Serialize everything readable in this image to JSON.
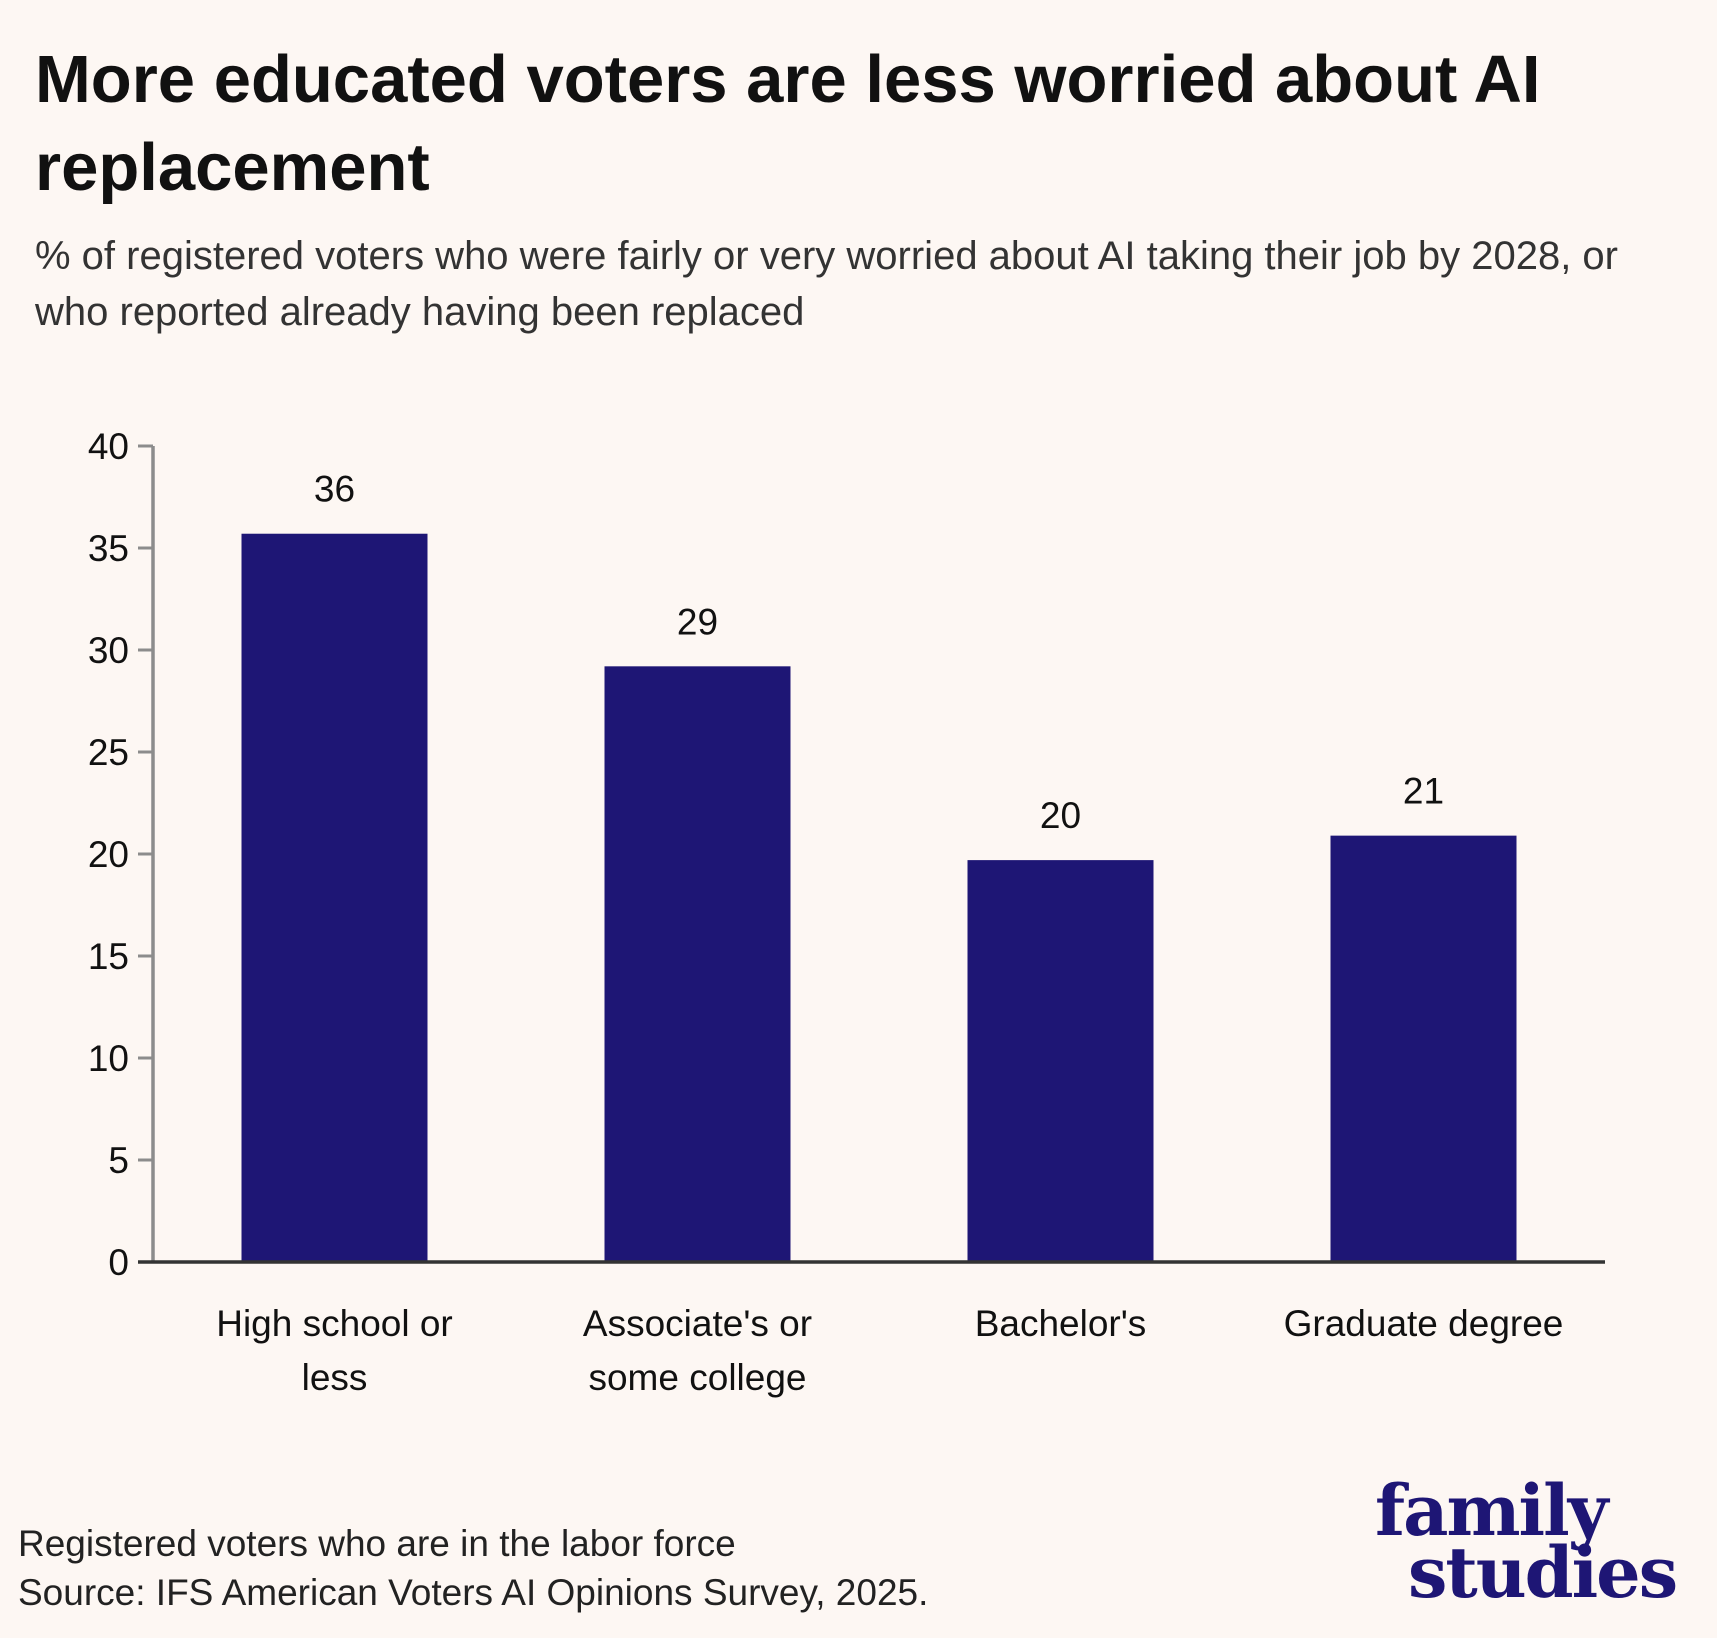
{
  "title": "More educated voters are less worried about AI replacement",
  "subtitle": "% of registered voters who were fairly or very worried about AI taking their job by 2028, or who reported already having been replaced",
  "footer": {
    "note": "Registered voters who are in the labor force",
    "source": "Source: IFS American Voters AI Opinions Survey, 2025."
  },
  "logo": {
    "line1": "family",
    "line2": "studies"
  },
  "colors": {
    "bar": "#1e1675",
    "background": "#fdf7f3",
    "axis": "#8c8c8c"
  },
  "chart_data": {
    "type": "bar",
    "title": "More educated voters are less worried about AI replacement",
    "categories": [
      [
        "High school or",
        "less"
      ],
      [
        "Associate's or",
        "some college"
      ],
      [
        "Bachelor's"
      ],
      [
        "Graduate degree"
      ]
    ],
    "values": [
      35.7,
      29.2,
      19.7,
      20.9
    ],
    "data_labels": [
      "36",
      "29",
      "20",
      "21"
    ],
    "ylim": [
      0,
      40
    ],
    "yticks": [
      0,
      5,
      10,
      15,
      20,
      25,
      30,
      35,
      40
    ],
    "xlabel": "",
    "ylabel": "",
    "grid": false
  }
}
